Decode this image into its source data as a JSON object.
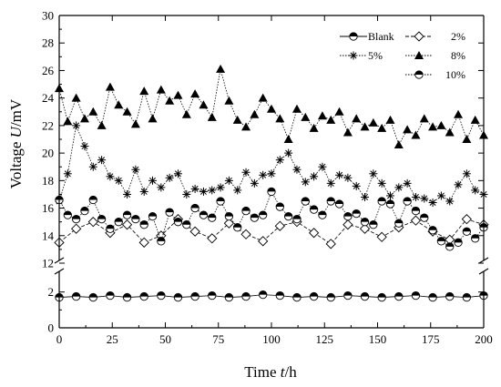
{
  "chart_data": {
    "type": "line",
    "xlabel": "Time t/h",
    "ylabel": "Voltage U/mV",
    "xlim": [
      0,
      200
    ],
    "ylim_lower": [
      0,
      3
    ],
    "ylim_upper": [
      12,
      30
    ],
    "axis_break": [
      3,
      12
    ],
    "grid": false,
    "legend_position": "top-right",
    "x_ticks": [
      0,
      25,
      50,
      75,
      100,
      125,
      150,
      175,
      200
    ],
    "y_ticks_lower": [
      0,
      2
    ],
    "y_ticks_upper": [
      12,
      14,
      16,
      18,
      20,
      22,
      24,
      26,
      28,
      30
    ],
    "x_tick_labels": [
      "0",
      "25",
      "50",
      "75",
      "100",
      "125",
      "150",
      "175",
      "200"
    ],
    "y_tick_labels_lower": [
      "0",
      "2"
    ],
    "y_tick_labels_upper": [
      "12",
      "14",
      "16",
      "18",
      "20",
      "22",
      "24",
      "26",
      "28",
      "30"
    ],
    "series": [
      {
        "name": "Blank",
        "marker": "half-filled-circle",
        "line": "solid",
        "x": [
          0,
          8,
          16,
          24,
          32,
          40,
          48,
          56,
          64,
          72,
          80,
          88,
          96,
          104,
          112,
          120,
          128,
          136,
          144,
          152,
          160,
          168,
          176,
          184,
          192,
          200
        ],
        "y": [
          1.7,
          1.75,
          1.7,
          1.8,
          1.7,
          1.75,
          1.8,
          1.7,
          1.75,
          1.8,
          1.7,
          1.75,
          1.85,
          1.8,
          1.7,
          1.75,
          1.7,
          1.8,
          1.75,
          1.7,
          1.75,
          1.8,
          1.7,
          1.75,
          1.7,
          1.8
        ]
      },
      {
        "name": "2%",
        "marker": "open-diamond",
        "line": "dashed",
        "x": [
          0,
          8,
          16,
          24,
          32,
          40,
          48,
          56,
          64,
          72,
          80,
          88,
          96,
          104,
          112,
          120,
          128,
          136,
          144,
          152,
          160,
          168,
          176,
          184,
          192,
          200
        ],
        "y": [
          13.5,
          14.5,
          15.0,
          14.2,
          14.8,
          13.5,
          14.0,
          15.2,
          14.3,
          13.8,
          14.9,
          14.1,
          13.6,
          14.7,
          15.0,
          14.2,
          13.4,
          14.8,
          14.5,
          13.9,
          14.6,
          15.1,
          14.3,
          13.7,
          15.2,
          14.8
        ]
      },
      {
        "name": "5%",
        "marker": "asterisk",
        "line": "dotted",
        "x": [
          0,
          4,
          8,
          12,
          16,
          20,
          24,
          28,
          32,
          36,
          40,
          44,
          48,
          52,
          56,
          60,
          64,
          68,
          72,
          76,
          80,
          84,
          88,
          92,
          96,
          100,
          104,
          108,
          112,
          116,
          120,
          124,
          128,
          132,
          136,
          140,
          144,
          148,
          152,
          156,
          160,
          164,
          168,
          172,
          176,
          180,
          184,
          188,
          192,
          196,
          200
        ],
        "y": [
          16.5,
          18.5,
          22.0,
          20.5,
          19.0,
          19.5,
          18.3,
          18.0,
          17.0,
          18.8,
          17.2,
          18.0,
          17.5,
          18.2,
          18.5,
          17.0,
          17.4,
          17.2,
          17.3,
          17.5,
          18.0,
          17.3,
          18.6,
          17.8,
          18.4,
          18.5,
          19.5,
          20.0,
          18.8,
          17.9,
          18.3,
          19.0,
          17.8,
          18.4,
          18.2,
          17.6,
          16.8,
          18.5,
          17.8,
          16.9,
          17.5,
          17.8,
          16.8,
          16.7,
          16.4,
          16.9,
          16.5,
          17.7,
          18.5,
          17.3,
          17.0
        ]
      },
      {
        "name": "8%",
        "marker": "filled-triangle",
        "line": "dotted",
        "x": [
          0,
          4,
          8,
          12,
          16,
          20,
          24,
          28,
          32,
          36,
          40,
          44,
          48,
          52,
          56,
          60,
          64,
          68,
          72,
          76,
          80,
          84,
          88,
          92,
          96,
          100,
          104,
          108,
          112,
          116,
          120,
          124,
          128,
          132,
          136,
          140,
          144,
          148,
          152,
          156,
          160,
          164,
          168,
          172,
          176,
          180,
          184,
          188,
          192,
          196,
          200
        ],
        "y": [
          24.7,
          22.3,
          24.0,
          22.5,
          23.0,
          22.0,
          24.8,
          23.5,
          23.0,
          22.1,
          24.5,
          22.5,
          24.6,
          23.8,
          24.2,
          22.8,
          24.3,
          23.5,
          22.6,
          26.1,
          23.8,
          22.4,
          21.9,
          22.8,
          24.0,
          23.2,
          22.5,
          21.0,
          23.2,
          22.6,
          21.8,
          22.7,
          22.4,
          23.0,
          21.5,
          22.5,
          21.9,
          22.2,
          21.8,
          22.4,
          20.6,
          21.7,
          21.3,
          22.5,
          21.9,
          22.0,
          21.5,
          22.8,
          21.0,
          22.4,
          21.3
        ]
      },
      {
        "name": "10%",
        "marker": "half-filled-circle",
        "line": "dotted",
        "x": [
          0,
          4,
          8,
          12,
          16,
          20,
          24,
          28,
          32,
          36,
          40,
          44,
          48,
          52,
          56,
          60,
          64,
          68,
          72,
          76,
          80,
          84,
          88,
          92,
          96,
          100,
          104,
          108,
          112,
          116,
          120,
          124,
          128,
          132,
          136,
          140,
          144,
          148,
          152,
          156,
          160,
          164,
          168,
          172,
          176,
          180,
          184,
          188,
          192,
          196,
          200
        ],
        "y": [
          16.6,
          15.5,
          15.2,
          15.8,
          16.6,
          15.2,
          14.5,
          15.0,
          15.5,
          15.2,
          14.8,
          15.4,
          13.6,
          15.7,
          15.0,
          14.8,
          16.0,
          15.5,
          15.3,
          16.5,
          15.4,
          14.6,
          15.8,
          15.3,
          15.5,
          17.2,
          16.1,
          15.4,
          15.2,
          16.5,
          15.9,
          15.5,
          16.5,
          16.3,
          15.4,
          15.6,
          15.0,
          14.8,
          16.5,
          16.3,
          14.9,
          16.5,
          15.8,
          15.3,
          14.4,
          13.6,
          13.2,
          13.5,
          14.3,
          13.8,
          14.6
        ]
      }
    ]
  }
}
